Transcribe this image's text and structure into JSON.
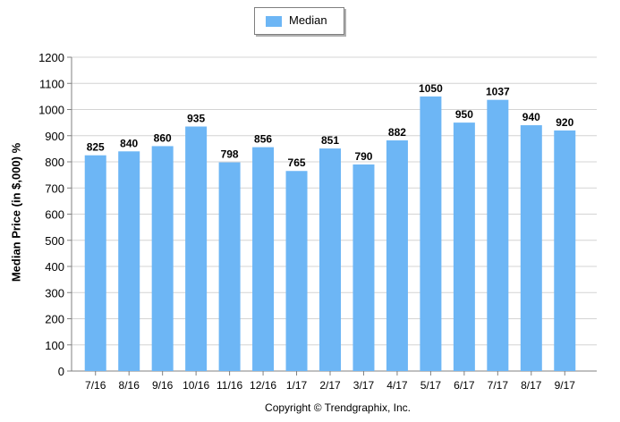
{
  "legend": {
    "label": "Median",
    "color": "#6db6f5"
  },
  "copyright": "Copyright © Trendgraphix, Inc.",
  "chart_data": {
    "type": "bar",
    "ylabel": "Median Price (in $,000) %",
    "xlabel": "",
    "categories": [
      "7/16",
      "8/16",
      "9/16",
      "10/16",
      "11/16",
      "12/16",
      "1/17",
      "2/17",
      "3/17",
      "4/17",
      "5/17",
      "6/17",
      "7/17",
      "8/17",
      "9/17"
    ],
    "series": [
      {
        "name": "Median",
        "values": [
          825,
          840,
          860,
          935,
          798,
          856,
          765,
          851,
          790,
          882,
          1050,
          950,
          1037,
          940,
          920
        ]
      }
    ],
    "ylim": [
      0,
      1200
    ],
    "yticks": [
      0,
      100,
      200,
      300,
      400,
      500,
      600,
      700,
      800,
      900,
      1000,
      1100,
      1200
    ],
    "grid": true,
    "legend_position": "top-center"
  }
}
